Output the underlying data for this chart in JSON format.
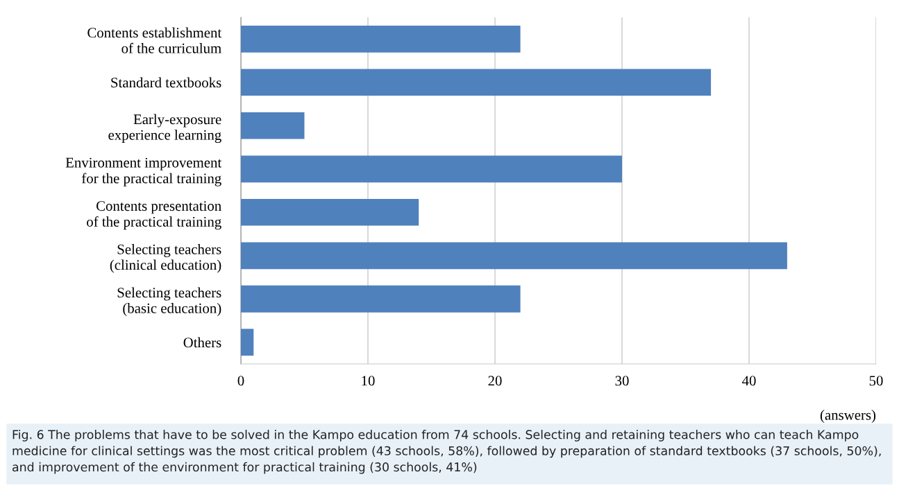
{
  "chart_data": {
    "type": "bar",
    "orientation": "horizontal",
    "categories": [
      "Contents establishment\nof the curriculum",
      "Standard textbooks",
      "Early-exposure\nexperience learning",
      "Environment improvement\nfor the practical training",
      "Contents presentation\nof the practical training",
      "Selecting teachers\n(clinical education)",
      "Selecting teachers\n(basic education)",
      "Others"
    ],
    "values": [
      22,
      37,
      5,
      30,
      14,
      43,
      22,
      1
    ],
    "color": "#4f81bd",
    "xlim": [
      0,
      50
    ],
    "xticks": [
      0,
      10,
      20,
      30,
      40,
      50
    ],
    "xlabel": "(answers)",
    "grid": "x",
    "annotations": [
      "Fig. 6 The problems that have to be solved in the Kampo education from 74 schools. Selecting and retaining teachers who can teach Kampo medicine for clinical settings was the most critical problem (43 schools, 58%), followed by preparation of standard textbooks (37 schools, 50%), and improvement of the environment for practical training (30 schools, 41%)"
    ]
  }
}
